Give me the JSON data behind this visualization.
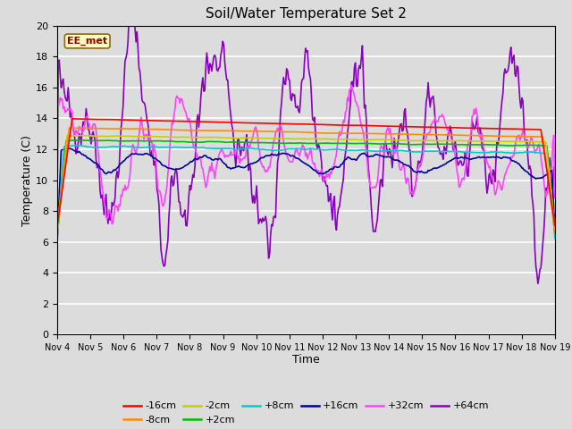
{
  "title": "Soil/Water Temperature Set 2",
  "xlabel": "Time",
  "ylabel": "Temperature (C)",
  "ylim": [
    0,
    20
  ],
  "yticks": [
    0,
    2,
    4,
    6,
    8,
    10,
    12,
    14,
    16,
    18,
    20
  ],
  "xtick_labels": [
    "Nov 4",
    "Nov 5",
    "Nov 6",
    "Nov 7",
    "Nov 8",
    "Nov 9",
    "Nov 10",
    "Nov 11",
    "Nov 12",
    "Nov 13",
    "Nov 14",
    "Nov 15",
    "Nov 16",
    "Nov 17",
    "Nov 18",
    "Nov 19"
  ],
  "annotation_text": "EE_met",
  "annotation_color": "#8B0000",
  "annotation_bg": "#FFFFC0",
  "series": {
    "-16cm": {
      "color": "#FF0000",
      "lw": 1.2
    },
    "-8cm": {
      "color": "#FF8C00",
      "lw": 1.2
    },
    "-2cm": {
      "color": "#CCCC00",
      "lw": 1.2
    },
    "+2cm": {
      "color": "#00BB00",
      "lw": 1.2
    },
    "+8cm": {
      "color": "#00CCCC",
      "lw": 1.2
    },
    "+16cm": {
      "color": "#000099",
      "lw": 1.2
    },
    "+32cm": {
      "color": "#FF44FF",
      "lw": 1.2
    },
    "+64cm": {
      "color": "#8800BB",
      "lw": 1.2
    }
  },
  "bg_color": "#DCDCDC",
  "plot_bg": "#DCDCDC",
  "grid_color": "#FFFFFF",
  "n_points": 500
}
